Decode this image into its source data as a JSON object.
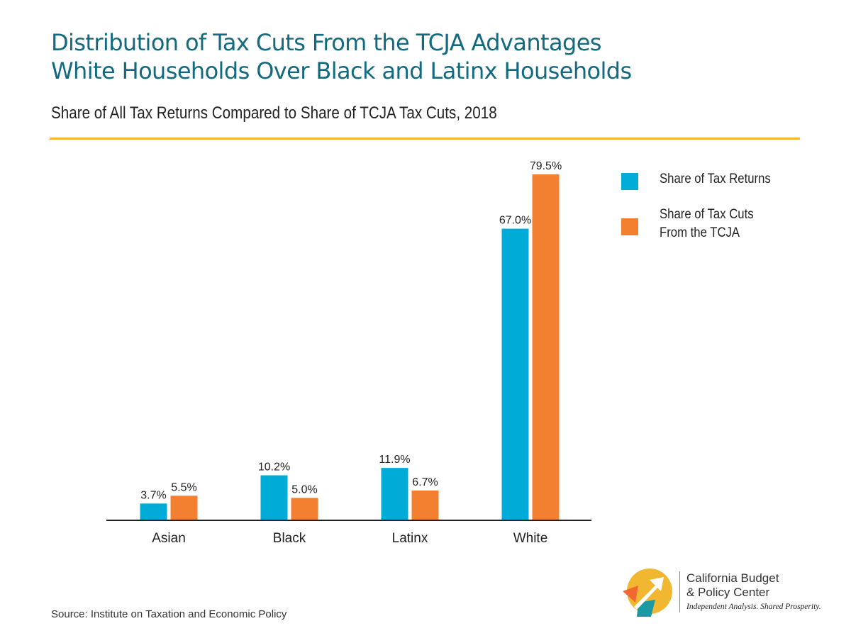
{
  "header": {
    "title_line1": "Distribution of Tax Cuts From the TCJA Advantages",
    "title_line2": "White Households Over Black and Latinx Households",
    "subtitle": "Share of All Tax Returns Compared to Share of TCJA Tax Cuts, 2018"
  },
  "colors": {
    "title": "#116a80",
    "rule": "#f2b731",
    "returns": "#00acd7",
    "cuts": "#f28030",
    "axis": "#222222"
  },
  "chart_data": {
    "type": "bar",
    "title": "Share of All Tax Returns Compared to Share of TCJA Tax Cuts, 2018",
    "categories": [
      "Asian",
      "Black",
      "Latinx",
      "White"
    ],
    "series": [
      {
        "name": "Share of Tax Returns",
        "values": [
          3.7,
          10.2,
          11.9,
          67.0
        ],
        "labels": [
          "3.7%",
          "10.2%",
          "11.9%",
          "67.0%"
        ]
      },
      {
        "name": "Share of Tax Cuts From the TCJA",
        "values": [
          5.5,
          5.0,
          6.7,
          79.5
        ],
        "labels": [
          "5.5%",
          "5.0%",
          "6.7%",
          "79.5%"
        ]
      }
    ],
    "ylim": [
      0,
      80
    ],
    "grid": false,
    "legend_position": "top-right"
  },
  "legend": {
    "items": [
      {
        "label_line1": "Share of Tax Returns",
        "label_line2": ""
      },
      {
        "label_line1": "Share of Tax Cuts",
        "label_line2": "From the TCJA"
      }
    ]
  },
  "footer": {
    "source": "Source: Institute on Taxation and Economic Policy"
  },
  "brand": {
    "name_line1": "California Budget",
    "name_line2": "& Policy Center",
    "tagline": "Independent Analysis. Shared Prosperity."
  }
}
